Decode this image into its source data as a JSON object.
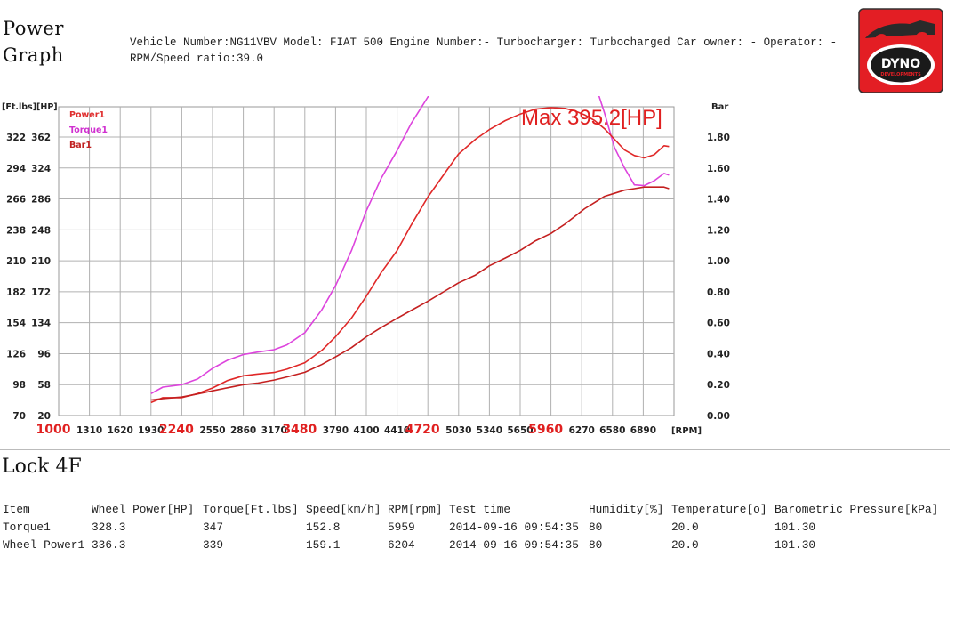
{
  "header": {
    "title_line1": "Power",
    "title_line2": "Graph",
    "info_line1": "Vehicle Number:NG11VBV Model: FIAT 500 Engine Number:- Turbocharger: Turbocharged Car owner: - Operator: -",
    "info_line2": "RPM/Speed ratio:39.0"
  },
  "logo": {
    "text_main": "DYNO",
    "text_sub": "DEVELOPMENTS",
    "color": "#e31e24"
  },
  "chart_data": {
    "type": "line",
    "x_ticks": [
      "1000",
      "1310",
      "1620",
      "1930",
      "2240",
      "2550",
      "2860",
      "3170",
      "3480",
      "3790",
      "4100",
      "4410",
      "4720",
      "5030",
      "5340",
      "5650",
      "5960",
      "6270",
      "6580",
      "6890"
    ],
    "x_highlight": [
      "1000",
      "2240",
      "3480",
      "4720",
      "5960"
    ],
    "x_unit_label": "[RPM]",
    "xlim": [
      1000,
      7200
    ],
    "left_axis_label": "[Ft.lbs][HP]",
    "left_ticks_ftlbs": [
      "322",
      "294",
      "266",
      "238",
      "210",
      "182",
      "154",
      "126",
      "98",
      "70"
    ],
    "left_ticks_hp": [
      "362",
      "324",
      "286",
      "248",
      "210",
      "172",
      "134",
      "96",
      "58",
      "20"
    ],
    "ylim_hp": [
      20,
      400
    ],
    "right_axis_label": "Bar",
    "right_ticks": [
      "1.80",
      "1.60",
      "1.40",
      "1.20",
      "1.00",
      "0.80",
      "0.60",
      "0.40",
      "0.20",
      "0.00"
    ],
    "ylim_bar": [
      0,
      2.0
    ],
    "max_annotation": "Max 395.2[HP]",
    "legend": [
      {
        "name": "Power1",
        "color": "#e03030"
      },
      {
        "name": "Torque1",
        "color": "#d030d0"
      },
      {
        "name": "Bar1",
        "color": "#c02020"
      }
    ],
    "series": [
      {
        "name": "Torque1",
        "color": "#dd44dd",
        "x": [
          1930,
          2050,
          2240,
          2400,
          2550,
          2700,
          2860,
          3000,
          3170,
          3300,
          3480,
          3650,
          3790,
          3950,
          4100,
          4250,
          4410,
          4550,
          4720,
          4900,
          5030,
          5200,
          5340,
          5500,
          5650,
          5800,
          5960,
          6100,
          6200,
          6300,
          6400,
          6500,
          6600,
          6700,
          6800,
          6900,
          7000,
          7100,
          7150
        ],
        "y": [
          47,
          55,
          58,
          65,
          78,
          88,
          95,
          98,
          101,
          107,
          122,
          150,
          180,
          223,
          272,
          312,
          346,
          379,
          412,
          440,
          458,
          475,
          486,
          495,
          498,
          497,
          492,
          484,
          474,
          457,
          430,
          392,
          350,
          325,
          304,
          303,
          309,
          318,
          316
        ]
      },
      {
        "name": "Power1",
        "color": "#e02828",
        "x": [
          1930,
          2050,
          2240,
          2400,
          2550,
          2700,
          2860,
          3000,
          3170,
          3300,
          3480,
          3650,
          3790,
          3950,
          4100,
          4250,
          4410,
          4550,
          4720,
          4900,
          5030,
          5200,
          5340,
          5500,
          5650,
          5800,
          5960,
          6100,
          6200,
          6300,
          6400,
          6500,
          6600,
          6700,
          6800,
          6900,
          7000,
          7100,
          7150
        ],
        "y": [
          36,
          42,
          42,
          47,
          54,
          63,
          69,
          71,
          73,
          77,
          85,
          100,
          117,
          140,
          167,
          196,
          223,
          254,
          289,
          320,
          342,
          360,
          372,
          383,
          391,
          397,
          399,
          398,
          395,
          390,
          383,
          373,
          360,
          347,
          340,
          337,
          341,
          352,
          351
        ]
      },
      {
        "name": "Bar1",
        "color": "#c42020",
        "axis": "right",
        "x": [
          1930,
          2050,
          2240,
          2400,
          2550,
          2700,
          2860,
          3000,
          3170,
          3300,
          3480,
          3650,
          3790,
          3950,
          4100,
          4250,
          4410,
          4550,
          4720,
          4900,
          5030,
          5200,
          5340,
          5500,
          5650,
          5800,
          5960,
          6100,
          6200,
          6300,
          6400,
          6500,
          6600,
          6700,
          6800,
          6900,
          7000,
          7100,
          7150
        ],
        "y": [
          0.1,
          0.11,
          0.12,
          0.14,
          0.16,
          0.18,
          0.2,
          0.21,
          0.23,
          0.25,
          0.28,
          0.33,
          0.38,
          0.44,
          0.51,
          0.57,
          0.63,
          0.68,
          0.74,
          0.81,
          0.86,
          0.91,
          0.97,
          1.02,
          1.07,
          1.13,
          1.18,
          1.24,
          1.29,
          1.34,
          1.38,
          1.42,
          1.44,
          1.46,
          1.47,
          1.48,
          1.48,
          1.48,
          1.47
        ]
      }
    ]
  },
  "section": {
    "lock_label": "Lock 4F"
  },
  "results": {
    "headers": [
      "Item",
      "Wheel Power[HP]",
      "Torque[Ft.lbs]",
      "Speed[km/h]",
      "RPM[rpm]",
      "Test time",
      "Humidity[%]",
      "Temperature[o]",
      "Barometric Pressure[kPa]"
    ],
    "rows": [
      [
        "Torque1",
        "328.3",
        "347",
        "152.8",
        "5959",
        "2014-09-16 09:54:35",
        "80",
        "20.0",
        "101.30"
      ],
      [
        "Wheel Power1",
        "336.3",
        "339",
        "159.1",
        "6204",
        "2014-09-16 09:54:35",
        "80",
        "20.0",
        "101.30"
      ]
    ]
  }
}
